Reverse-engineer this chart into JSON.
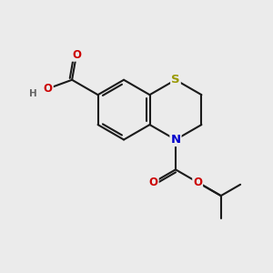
{
  "background_color": "#ebebeb",
  "atom_colors": {
    "S": "#999900",
    "N": "#0000cc",
    "O": "#cc0000",
    "C": "#1a1a1a",
    "H": "#666666"
  },
  "bond_color": "#1a1a1a",
  "bond_width": 1.5,
  "figsize": [
    3.0,
    3.0
  ],
  "dpi": 100
}
